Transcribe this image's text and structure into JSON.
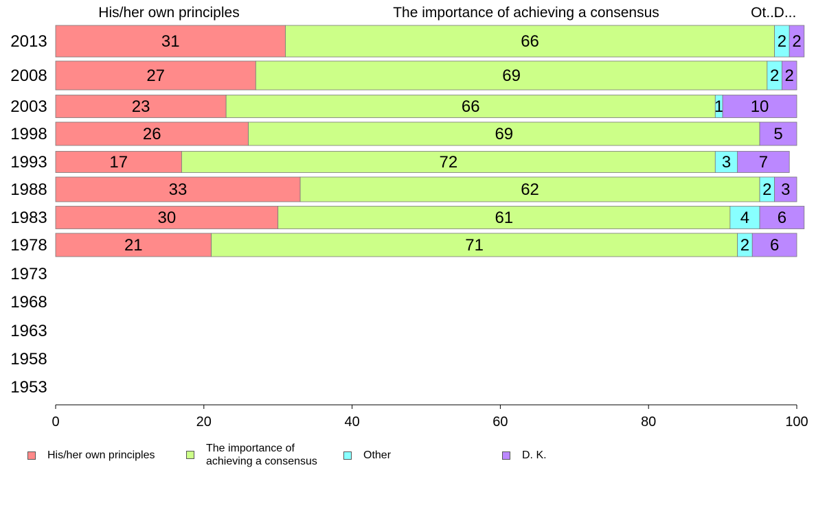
{
  "chart_data": {
    "type": "bar",
    "orientation": "horizontal",
    "stacked": true,
    "categories": [
      "2013",
      "2008",
      "2003",
      "1998",
      "1993",
      "1988",
      "1983",
      "1978",
      "1973",
      "1968",
      "1963",
      "1958",
      "1953"
    ],
    "series": [
      {
        "name": "His/her own principles",
        "color": "#ff8a8a",
        "values": [
          31,
          27,
          23,
          26,
          17,
          33,
          30,
          21,
          null,
          null,
          null,
          null,
          null
        ]
      },
      {
        "name": "The importance of achieving a consensus",
        "color": "#ccff88",
        "values": [
          66,
          69,
          66,
          69,
          72,
          62,
          61,
          71,
          null,
          null,
          null,
          null,
          null
        ]
      },
      {
        "name": "Other",
        "color": "#88ffff",
        "values": [
          2,
          2,
          1,
          0,
          3,
          2,
          4,
          2,
          null,
          null,
          null,
          null,
          null
        ]
      },
      {
        "name": "D. K.",
        "color": "#bb88ff",
        "values": [
          2,
          2,
          10,
          5,
          7,
          3,
          6,
          6,
          null,
          null,
          null,
          null,
          null
        ]
      }
    ],
    "top_labels": [
      "His/her own principles",
      "The importance of achieving a consensus",
      "Ot...",
      "D..."
    ],
    "xlim": [
      0,
      100
    ],
    "xticks": [
      "0",
      "20",
      "40",
      "60",
      "80",
      "100"
    ],
    "grid": false,
    "legend_position": "bottom"
  },
  "legend": {
    "items": [
      {
        "label": "His/her own principles",
        "color": "#ff8a8a"
      },
      {
        "label": "The importance of achieving a consensus",
        "color": "#ccff88"
      },
      {
        "label": "Other",
        "color": "#88ffff"
      },
      {
        "label": "D. K.",
        "color": "#bb88ff"
      }
    ]
  }
}
